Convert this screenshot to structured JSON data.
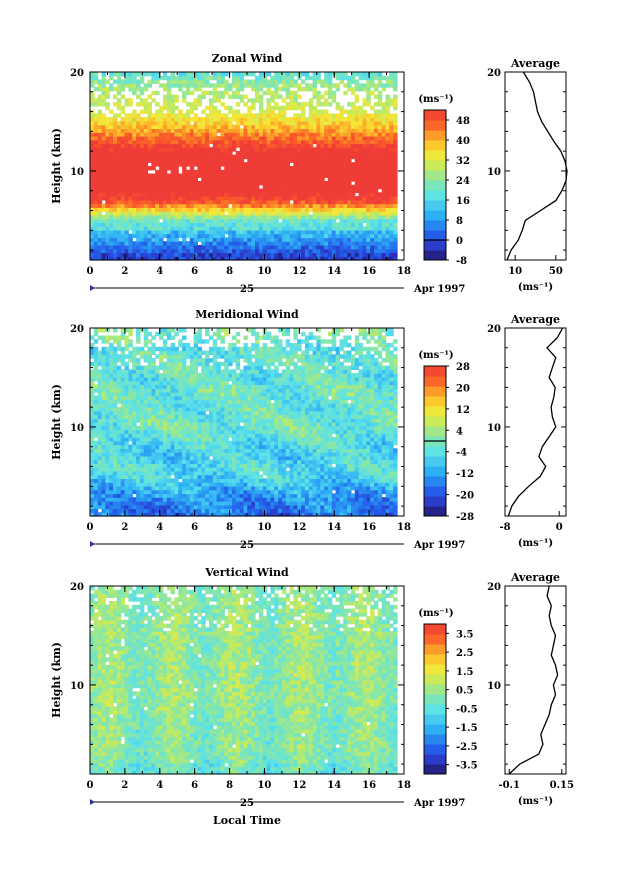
{
  "figure": {
    "xlabel": "Local Time",
    "date_label": "Apr 1997",
    "day_label": "25",
    "avg_title": "Average",
    "unit_label": "(ms⁻¹)"
  },
  "chart_data": [
    {
      "type": "heatmap",
      "title": "Zonal Wind",
      "xlabel": "",
      "ylabel": "Height (km)",
      "xlim": [
        0,
        18
      ],
      "ylim": [
        1,
        20
      ],
      "xticks": [
        0,
        2,
        4,
        6,
        8,
        10,
        12,
        14,
        16,
        18
      ],
      "yticks": [
        10,
        20
      ],
      "data_end_hour": 17.6,
      "colorbar": {
        "label": "(ms⁻¹)",
        "min": -8,
        "max": 52,
        "ticks": [
          48,
          40,
          32,
          24,
          16,
          8,
          0,
          -8
        ],
        "contour_line": 0
      },
      "profile": {
        "heights": [
          1,
          2,
          3,
          4,
          5,
          6,
          7,
          8,
          9,
          10,
          11,
          12,
          13,
          14,
          15,
          16,
          17,
          18,
          19,
          20
        ],
        "values": [
          2,
          6,
          13,
          17,
          20,
          35,
          50,
          56,
          60,
          61,
          59,
          55,
          48,
          42,
          36,
          32,
          30,
          28,
          24,
          18
        ],
        "xlim": [
          0,
          60
        ],
        "xticks": [
          10,
          50
        ]
      }
    },
    {
      "type": "heatmap",
      "title": "Meridional Wind",
      "xlabel": "",
      "ylabel": "Height (km)",
      "xlim": [
        0,
        18
      ],
      "ylim": [
        1,
        20
      ],
      "xticks": [
        0,
        2,
        4,
        6,
        8,
        10,
        12,
        14,
        16,
        18
      ],
      "yticks": [
        10,
        20
      ],
      "data_end_hour": 17.6,
      "colorbar": {
        "label": "(ms⁻¹)",
        "min": -28,
        "max": 28,
        "ticks": [
          28,
          20,
          12,
          4,
          -4,
          -12,
          -20,
          -28
        ],
        "contour_line": 0
      },
      "profile": {
        "heights": [
          1,
          2,
          3,
          4,
          5,
          6,
          7,
          8,
          9,
          10,
          11,
          12,
          13,
          14,
          15,
          16,
          17,
          18,
          19,
          20
        ],
        "values": [
          -7.5,
          -7.0,
          -6.0,
          -4.5,
          -2.8,
          -2.0,
          -3.0,
          -2.5,
          -1.5,
          -0.5,
          -1.0,
          -1.2,
          -0.8,
          -0.6,
          -1.5,
          -1.0,
          -0.5,
          -1.8,
          -0.3,
          0.5
        ],
        "xlim": [
          -8,
          1
        ],
        "xticks": [
          -8,
          0
        ]
      }
    },
    {
      "type": "heatmap",
      "title": "Vertical Wind",
      "xlabel": "Local Time",
      "ylabel": "Height (km)",
      "xlim": [
        0,
        18
      ],
      "ylim": [
        1,
        20
      ],
      "xticks": [
        0,
        2,
        4,
        6,
        8,
        10,
        12,
        14,
        16,
        18
      ],
      "yticks": [
        10,
        20
      ],
      "data_end_hour": 17.6,
      "colorbar": {
        "label": "(ms⁻¹)",
        "min": -4.0,
        "max": 4.0,
        "ticks": [
          3.5,
          2.5,
          1.5,
          0.5,
          -0.5,
          -1.5,
          -2.5,
          -3.5
        ],
        "contour_line": null
      },
      "profile": {
        "heights": [
          1,
          2,
          3,
          4,
          5,
          6,
          7,
          8,
          9,
          10,
          11,
          12,
          13,
          14,
          15,
          16,
          17,
          18,
          19,
          20
        ],
        "values": [
          -0.1,
          -0.05,
          0.04,
          0.06,
          0.05,
          0.07,
          0.09,
          0.1,
          0.12,
          0.11,
          0.13,
          0.12,
          0.1,
          0.11,
          0.12,
          0.1,
          0.09,
          0.1,
          0.08,
          0.09
        ],
        "xlim": [
          -0.12,
          0.17
        ],
        "xticks": [
          -0.1,
          0.15
        ]
      }
    }
  ]
}
